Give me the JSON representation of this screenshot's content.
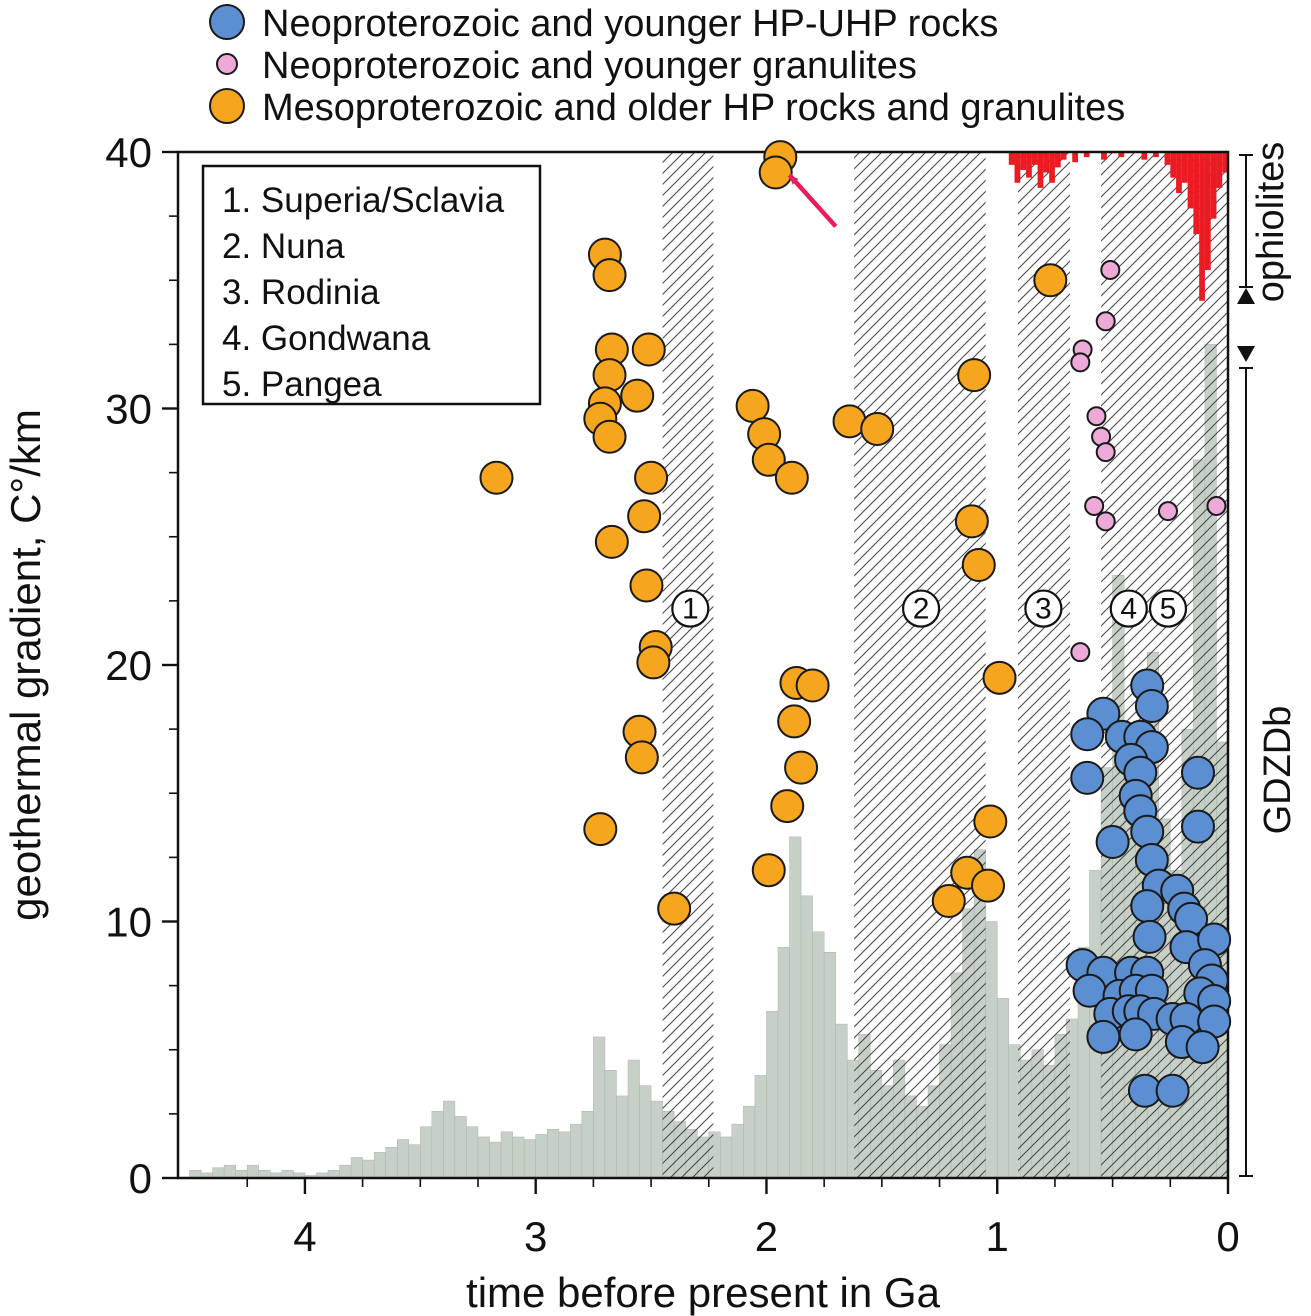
{
  "top_legend": {
    "items": [
      {
        "label": "Neoproterozoic and younger HP-UHP rocks",
        "color": "#5b8fd2",
        "r": 17
      },
      {
        "label": "Neoproterozoic and younger granulites",
        "color": "#eda9d8",
        "r": 10
      },
      {
        "label": "Mesoproterozoic and older HP rocks and granulites",
        "color": "#f6a51e",
        "r": 17
      }
    ]
  },
  "inner_legend": {
    "lines": [
      "1. Superia/Sclavia",
      "2. Nuna",
      "3. Rodinia",
      "4. Gondwana",
      "5. Pangea"
    ]
  },
  "side_labels": {
    "ophiolites": "ophiolites",
    "gdzdb": "GDZDb",
    "ophiolites_color": "#ec1b23"
  },
  "chart_data": {
    "type": "scatter",
    "title": "",
    "xlabel": "time before present in Ga",
    "ylabel": "geothermal gradient, C°/km",
    "xlim": [
      4.55,
      0
    ],
    "ylim": [
      0,
      40
    ],
    "x_major_ticks": [
      4,
      3,
      2,
      1,
      0
    ],
    "x_minor_step": 0.25,
    "y_major_ticks": [
      0,
      10,
      20,
      30,
      40
    ],
    "y_minor_step": 2.5,
    "grid": false,
    "legend_position": "top-left-outside",
    "series": [
      {
        "key": "neo-hp-uhp",
        "name": "Neoproterozoic and younger HP-UHP rocks",
        "color": "#5b8fd2",
        "marker_r": 16,
        "points": [
          [
            0.35,
            19.2
          ],
          [
            0.33,
            18.4
          ],
          [
            0.54,
            18.1
          ],
          [
            0.61,
            17.3
          ],
          [
            0.46,
            17.2
          ],
          [
            0.38,
            17.2
          ],
          [
            0.33,
            16.8
          ],
          [
            0.42,
            16.3
          ],
          [
            0.38,
            15.8
          ],
          [
            0.61,
            15.6
          ],
          [
            0.13,
            15.8
          ],
          [
            0.4,
            14.9
          ],
          [
            0.38,
            14.3
          ],
          [
            0.35,
            13.5
          ],
          [
            0.5,
            13.1
          ],
          [
            0.13,
            13.7
          ],
          [
            0.33,
            12.4
          ],
          [
            0.3,
            11.4
          ],
          [
            0.22,
            11.2
          ],
          [
            0.35,
            10.6
          ],
          [
            0.19,
            10.5
          ],
          [
            0.16,
            10.1
          ],
          [
            0.34,
            9.4
          ],
          [
            0.18,
            9.0
          ],
          [
            0.06,
            9.3
          ],
          [
            0.63,
            8.3
          ],
          [
            0.54,
            8.0
          ],
          [
            0.42,
            8.0
          ],
          [
            0.35,
            8.0
          ],
          [
            0.1,
            8.3
          ],
          [
            0.07,
            7.7
          ],
          [
            0.6,
            7.3
          ],
          [
            0.47,
            7.1
          ],
          [
            0.4,
            7.3
          ],
          [
            0.33,
            7.3
          ],
          [
            0.12,
            7.2
          ],
          [
            0.06,
            6.9
          ],
          [
            0.51,
            6.4
          ],
          [
            0.43,
            6.5
          ],
          [
            0.38,
            6.5
          ],
          [
            0.32,
            6.4
          ],
          [
            0.24,
            6.2
          ],
          [
            0.18,
            6.2
          ],
          [
            0.06,
            6.1
          ],
          [
            0.54,
            5.5
          ],
          [
            0.4,
            5.6
          ],
          [
            0.2,
            5.3
          ],
          [
            0.11,
            5.1
          ],
          [
            0.36,
            3.4
          ],
          [
            0.24,
            3.4
          ]
        ]
      },
      {
        "key": "neo-granulites",
        "name": "Neoproterozoic and younger granulites",
        "color": "#eda9d8",
        "marker_r": 9,
        "points": [
          [
            0.51,
            35.4
          ],
          [
            0.53,
            33.4
          ],
          [
            0.63,
            32.3
          ],
          [
            0.64,
            31.8
          ],
          [
            0.57,
            29.7
          ],
          [
            0.55,
            28.9
          ],
          [
            0.53,
            28.3
          ],
          [
            0.58,
            26.2
          ],
          [
            0.53,
            25.6
          ],
          [
            0.26,
            26.0
          ],
          [
            0.05,
            26.2
          ],
          [
            0.64,
            20.5
          ]
        ]
      },
      {
        "key": "meso-older-hp",
        "name": "Mesoproterozoic and older HP rocks and granulites",
        "color": "#f6a51e",
        "marker_r": 16,
        "points": [
          [
            3.17,
            27.3
          ],
          [
            2.7,
            36.0
          ],
          [
            2.68,
            35.2
          ],
          [
            2.67,
            32.3
          ],
          [
            2.51,
            32.3
          ],
          [
            2.68,
            31.3
          ],
          [
            2.56,
            30.5
          ],
          [
            2.7,
            30.2
          ],
          [
            2.72,
            29.6
          ],
          [
            2.68,
            28.9
          ],
          [
            2.5,
            27.3
          ],
          [
            2.53,
            25.8
          ],
          [
            2.67,
            24.8
          ],
          [
            2.52,
            23.1
          ],
          [
            2.48,
            20.7
          ],
          [
            2.49,
            20.1
          ],
          [
            2.55,
            17.4
          ],
          [
            2.54,
            16.4
          ],
          [
            2.72,
            13.6
          ],
          [
            2.4,
            10.5
          ],
          [
            2.06,
            30.1
          ],
          [
            2.01,
            29.0
          ],
          [
            1.99,
            28.0
          ],
          [
            1.89,
            27.3
          ],
          [
            1.94,
            39.8
          ],
          [
            1.96,
            39.2
          ],
          [
            1.87,
            19.3
          ],
          [
            1.8,
            19.2
          ],
          [
            1.88,
            17.8
          ],
          [
            1.85,
            16.0
          ],
          [
            1.91,
            14.5
          ],
          [
            1.99,
            12.0
          ],
          [
            1.64,
            29.5
          ],
          [
            1.52,
            29.2
          ],
          [
            1.1,
            31.3
          ],
          [
            1.11,
            25.6
          ],
          [
            1.08,
            23.9
          ],
          [
            0.99,
            19.5
          ],
          [
            1.03,
            13.9
          ],
          [
            1.13,
            11.9
          ],
          [
            1.04,
            11.4
          ],
          [
            1.21,
            10.8
          ],
          [
            0.77,
            35.0
          ]
        ]
      }
    ],
    "histograms": [
      {
        "name": "GDZDb",
        "color": "#c7d0c7",
        "baseline": "bottom",
        "x_start": 4.5,
        "bin_width": 0.05,
        "heights": [
          0.3,
          0.2,
          0.4,
          0.5,
          0.3,
          0.5,
          0.3,
          0.2,
          0.3,
          0.2,
          0.1,
          0.2,
          0.3,
          0.5,
          0.8,
          0.7,
          1.0,
          1.2,
          1.5,
          1.3,
          2.0,
          2.6,
          3.0,
          2.4,
          2.0,
          1.6,
          1.4,
          1.8,
          1.6,
          1.5,
          1.7,
          1.9,
          1.8,
          2.1,
          2.6,
          5.5,
          4.2,
          3.2,
          4.6,
          3.6,
          3.0,
          2.6,
          2.2,
          1.9,
          1.6,
          1.8,
          1.6,
          2.1,
          2.8,
          4.0,
          6.5,
          9.0,
          13.3,
          11.0,
          9.6,
          8.8,
          6.0,
          4.6,
          5.6,
          4.2,
          3.6,
          4.6,
          3.2,
          2.8,
          3.6,
          5.2,
          8.0,
          10.5,
          12.8,
          10.0,
          7.0,
          5.2,
          4.6,
          5.0,
          4.4,
          5.6,
          6.2,
          9.0,
          12.0,
          16.0,
          23.5,
          17.5,
          15.0,
          20.5,
          14.0,
          12.0,
          17.5,
          28.0,
          32.5,
          17.0
        ]
      },
      {
        "name": "ophiolites",
        "color": "#ec1b23",
        "baseline": "top",
        "x_start": 0.95,
        "bin_width": 0.025,
        "heights": [
          0.5,
          1.2,
          0.7,
          1.0,
          0.5,
          1.4,
          0.8,
          1.2,
          0.6,
          0.3,
          0,
          0.4,
          0,
          0.2,
          0,
          0,
          0.3,
          0,
          0,
          0.2,
          0,
          0,
          0,
          0.3,
          0,
          0.2,
          0,
          0.5,
          1.0,
          1.6,
          1.2,
          2.2,
          3.2,
          5.8,
          4.6,
          2.6,
          1.4,
          0.8
        ]
      }
    ],
    "hatch_bands": [
      {
        "x1": 2.45,
        "x2": 2.23
      },
      {
        "x1": 1.62,
        "x2": 1.05
      },
      {
        "x1": 0.91,
        "x2": 0.685
      },
      {
        "x1": 0.55,
        "x2": 0.0
      }
    ],
    "numbered_markers": [
      {
        "label": "1",
        "x": 2.33,
        "y": 22.2
      },
      {
        "label": "2",
        "x": 1.33,
        "y": 22.2
      },
      {
        "label": "3",
        "x": 0.8,
        "y": 22.2
      },
      {
        "label": "4",
        "x": 0.43,
        "y": 22.2
      },
      {
        "label": "5",
        "x": 0.26,
        "y": 22.2
      }
    ],
    "arrow": {
      "tail_x": 1.7,
      "tail_y": 37.1,
      "tip_x": 1.9,
      "tip_y": 39.1,
      "color": "#ec1c5a"
    }
  }
}
